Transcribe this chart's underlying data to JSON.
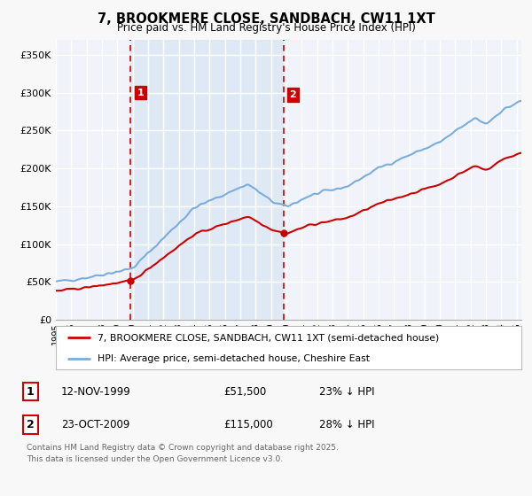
{
  "title": "7, BROOKMERE CLOSE, SANDBACH, CW11 1XT",
  "subtitle": "Price paid vs. HM Land Registry's House Price Index (HPI)",
  "ylabel_ticks": [
    "£0",
    "£50K",
    "£100K",
    "£150K",
    "£200K",
    "£250K",
    "£300K",
    "£350K"
  ],
  "ytick_values": [
    0,
    50000,
    100000,
    150000,
    200000,
    250000,
    300000,
    350000
  ],
  "ylim": [
    0,
    370000
  ],
  "xlim_left": 1995,
  "xlim_right": 2025.3,
  "sale1_date": 1999.87,
  "sale1_price": 51500,
  "sale2_date": 2009.81,
  "sale2_price": 115000,
  "legend_line1": "7, BROOKMERE CLOSE, SANDBACH, CW11 1XT (semi-detached house)",
  "legend_line2": "HPI: Average price, semi-detached house, Cheshire East",
  "table_row1": [
    "1",
    "12-NOV-1999",
    "£51,500",
    "23% ↓ HPI"
  ],
  "table_row2": [
    "2",
    "23-OCT-2009",
    "£115,000",
    "28% ↓ HPI"
  ],
  "footer_line1": "Contains HM Land Registry data © Crown copyright and database right 2025.",
  "footer_line2": "This data is licensed under the Open Government Licence v3.0.",
  "line_color_red": "#cc0000",
  "line_color_blue": "#7aaddb",
  "vline_color": "#cc0000",
  "shade_color": "#dce8f5",
  "plot_bg": "#f0f4fa",
  "grid_color": "#ffffff",
  "annotation_box_color": "#cc0000",
  "fig_bg": "#f8f8f8"
}
